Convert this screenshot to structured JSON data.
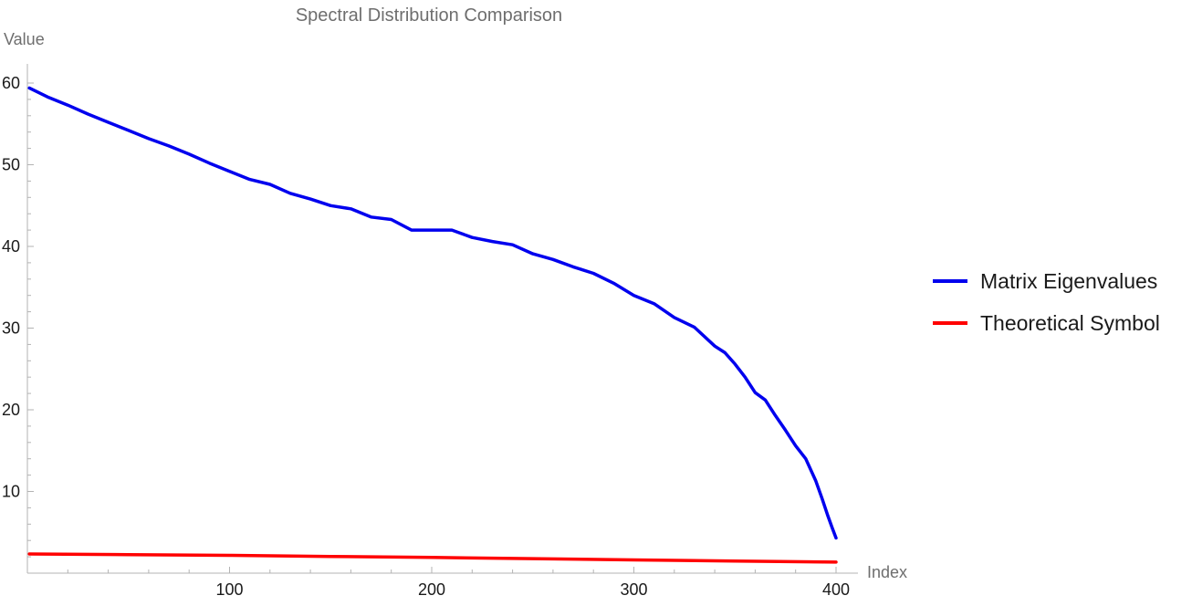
{
  "chart_data": {
    "type": "line",
    "title": "Spectral Distribution Comparison",
    "xlabel": "Index",
    "ylabel": "Value",
    "xlim": [
      0,
      405
    ],
    "ylim": [
      0,
      62
    ],
    "x_ticks": [
      100,
      200,
      300,
      400
    ],
    "y_ticks": [
      10,
      20,
      30,
      40,
      50,
      60
    ],
    "grid": false,
    "legend_position": "right",
    "series": [
      {
        "name": "Matrix Eigenvalues",
        "color": "#0000ee",
        "x": [
          1,
          10,
          20,
          30,
          40,
          50,
          60,
          70,
          80,
          90,
          100,
          110,
          120,
          130,
          140,
          150,
          160,
          170,
          180,
          190,
          200,
          210,
          220,
          230,
          240,
          250,
          260,
          270,
          280,
          290,
          300,
          310,
          320,
          330,
          340,
          345,
          350,
          355,
          360,
          365,
          370,
          375,
          380,
          385,
          390,
          393,
          396,
          398,
          400
        ],
        "y": [
          59.4,
          58.3,
          57.3,
          56.2,
          55.2,
          54.2,
          53.2,
          52.3,
          51.3,
          50.2,
          49.2,
          48.2,
          47.6,
          46.5,
          45.8,
          45.0,
          44.6,
          43.6,
          43.3,
          42.0,
          42.0,
          42.0,
          41.1,
          40.6,
          40.2,
          39.1,
          38.4,
          37.5,
          36.7,
          35.5,
          34.0,
          33.0,
          31.3,
          30.1,
          27.8,
          27.0,
          25.6,
          24.0,
          22.1,
          21.2,
          19.3,
          17.5,
          15.6,
          14.0,
          11.3,
          9.2,
          7.0,
          5.6,
          4.3
        ]
      },
      {
        "name": "Theoretical Symbol",
        "color": "#ff0000",
        "x": [
          1,
          50,
          100,
          150,
          200,
          250,
          300,
          350,
          400
        ],
        "y": [
          2.35,
          2.27,
          2.18,
          2.05,
          1.92,
          1.78,
          1.62,
          1.48,
          1.35
        ]
      }
    ]
  }
}
